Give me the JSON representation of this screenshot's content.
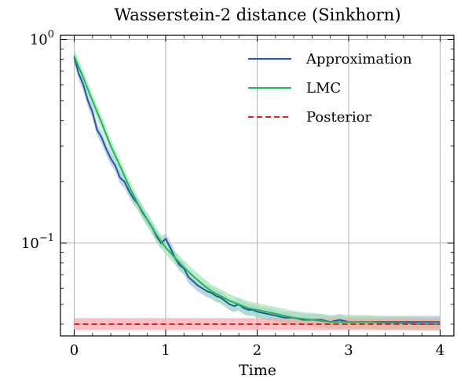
{
  "chart_data": {
    "type": "line",
    "title": "Wasserstein-2 distance (Sinkhorn)",
    "xlabel": "Time",
    "ylabel": "",
    "xlim": [
      -0.15,
      4.15
    ],
    "ylim": [
      0.035,
      1.05
    ],
    "yscale": "log",
    "grid": true,
    "legend_position": "top-right",
    "x_ticks": [
      0,
      1,
      2,
      3,
      4
    ],
    "x_tick_labels": [
      "0",
      "1",
      "2",
      "3",
      "4"
    ],
    "y_ticks": [
      0.1,
      1
    ],
    "y_tick_labels": [
      {
        "base": "10",
        "exp": "−1"
      },
      {
        "base": "10",
        "exp": "0"
      }
    ],
    "series": [
      {
        "name": "Approximation",
        "color": "#1f5aa6",
        "band_color": "#a8c1e0",
        "style": "solid",
        "x": [
          0,
          0.05,
          0.1,
          0.15,
          0.2,
          0.25,
          0.3,
          0.35,
          0.4,
          0.45,
          0.5,
          0.55,
          0.6,
          0.65,
          0.7,
          0.75,
          0.8,
          0.85,
          0.9,
          0.95,
          1.0,
          1.05,
          1.1,
          1.15,
          1.2,
          1.25,
          1.3,
          1.35,
          1.4,
          1.45,
          1.5,
          1.55,
          1.6,
          1.65,
          1.7,
          1.75,
          1.8,
          1.85,
          1.9,
          1.95,
          2.0,
          2.1,
          2.2,
          2.3,
          2.4,
          2.5,
          2.6,
          2.7,
          2.8,
          2.9,
          3.0,
          3.2,
          3.4,
          3.6,
          3.8,
          4.0
        ],
        "y": [
          0.82,
          0.68,
          0.6,
          0.5,
          0.44,
          0.36,
          0.33,
          0.29,
          0.26,
          0.24,
          0.21,
          0.2,
          0.18,
          0.165,
          0.155,
          0.14,
          0.13,
          0.12,
          0.108,
          0.1,
          0.105,
          0.095,
          0.085,
          0.078,
          0.075,
          0.068,
          0.065,
          0.062,
          0.06,
          0.058,
          0.057,
          0.055,
          0.054,
          0.052,
          0.05,
          0.049,
          0.05,
          0.048,
          0.047,
          0.047,
          0.046,
          0.045,
          0.044,
          0.043,
          0.043,
          0.042,
          0.042,
          0.042,
          0.041,
          0.042,
          0.041,
          0.041,
          0.041,
          0.041,
          0.041,
          0.041
        ],
        "band_ratio": 1.07
      },
      {
        "name": "LMC",
        "color": "#22b85a",
        "band_color": "#a7e2b8",
        "style": "solid",
        "x": [
          0,
          0.1,
          0.2,
          0.3,
          0.4,
          0.5,
          0.6,
          0.7,
          0.8,
          0.9,
          1.0,
          1.1,
          1.2,
          1.3,
          1.4,
          1.5,
          1.6,
          1.7,
          1.8,
          1.9,
          2.0,
          2.2,
          2.4,
          2.6,
          2.8,
          3.0,
          3.2,
          3.4,
          3.6,
          3.8,
          4.0
        ],
        "y": [
          0.83,
          0.65,
          0.5,
          0.39,
          0.3,
          0.24,
          0.19,
          0.155,
          0.13,
          0.11,
          0.095,
          0.085,
          0.076,
          0.069,
          0.063,
          0.058,
          0.055,
          0.052,
          0.05,
          0.048,
          0.047,
          0.045,
          0.043,
          0.042,
          0.041,
          0.041,
          0.041,
          0.0405,
          0.0405,
          0.04,
          0.04
        ],
        "band_ratio": 1.08
      },
      {
        "name": "Posterior",
        "color": "#e8201f",
        "band_color": "#f7a6a6",
        "style": "dashed",
        "x": [
          0,
          4
        ],
        "y": [
          0.04,
          0.04
        ],
        "band_ratio": 1.07
      }
    ]
  }
}
